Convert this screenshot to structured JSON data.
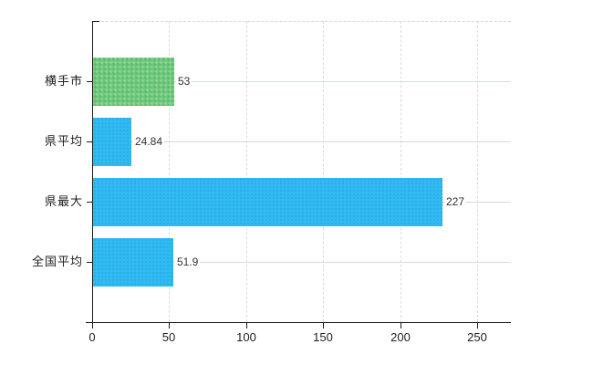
{
  "chart_data": {
    "type": "bar",
    "orientation": "horizontal",
    "title": "",
    "categories": [
      "横手市",
      "県平均",
      "県最大",
      "全国平均"
    ],
    "values": [
      53,
      24.84,
      227,
      51.9
    ],
    "value_labels": [
      "53",
      "24.84",
      "227",
      "51.9"
    ],
    "bar_colors": [
      "#6ECA7E",
      "#31B9F1",
      "#31B9F1",
      "#31B9F1"
    ],
    "xlabel": "",
    "ylabel": "",
    "xticks": [
      0,
      50,
      100,
      150,
      200,
      250
    ],
    "xtick_labels": [
      "0",
      "50",
      "100",
      "150",
      "200",
      "250"
    ],
    "xlim": [
      0,
      272
    ],
    "grid": {
      "vertical": "dashed",
      "horizontal_category_lines": true,
      "top_border": "dashed"
    },
    "legend": "none",
    "colors": {
      "highlight_bar": "#6ECA7E",
      "default_bar": "#31B9F1",
      "axis": "#1a1a1a",
      "vertical_grid": "#DBDBDB",
      "horizontal_grid": "#D5DDD5",
      "label_text": "#333333",
      "background": "#FFFFFF"
    }
  }
}
